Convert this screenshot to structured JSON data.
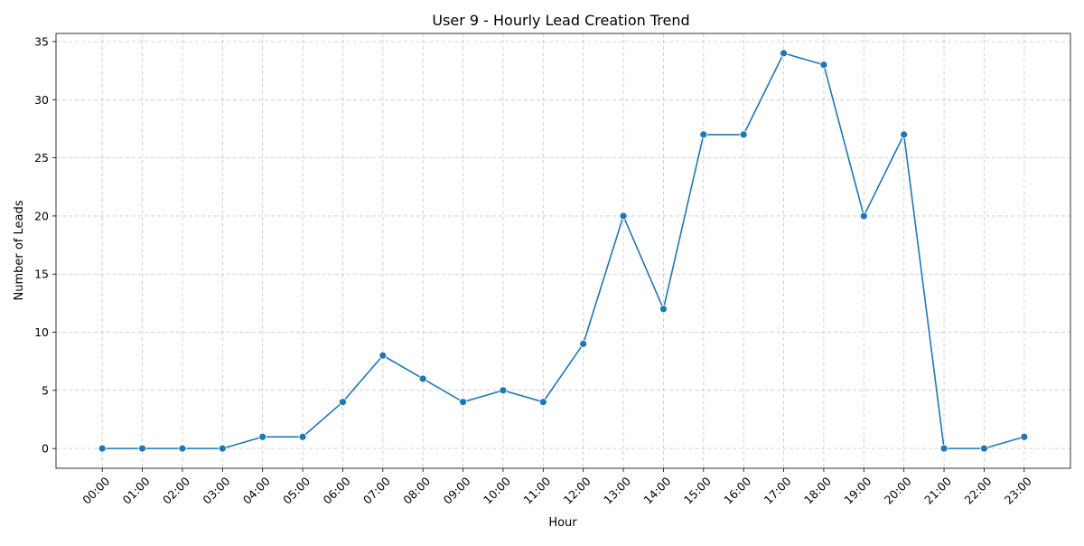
{
  "chart_data": {
    "type": "line",
    "title": "User 9 - Hourly Lead Creation Trend",
    "xlabel": "Hour",
    "ylabel": "Number of Leads",
    "categories": [
      "00:00",
      "01:00",
      "02:00",
      "03:00",
      "04:00",
      "05:00",
      "06:00",
      "07:00",
      "08:00",
      "09:00",
      "10:00",
      "11:00",
      "12:00",
      "13:00",
      "14:00",
      "15:00",
      "16:00",
      "17:00",
      "18:00",
      "19:00",
      "20:00",
      "21:00",
      "22:00",
      "23:00"
    ],
    "series": [
      {
        "name": "Leads",
        "color": "#1f77b4",
        "values": [
          0,
          0,
          0,
          0,
          1,
          1,
          4,
          8,
          6,
          4,
          5,
          4,
          9,
          20,
          12,
          27,
          27,
          34,
          33,
          20,
          27,
          0,
          0,
          1
        ]
      }
    ],
    "ylim": [
      -1.7,
      35.7
    ],
    "yticks": [
      0,
      5,
      10,
      15,
      20,
      25,
      30,
      35
    ],
    "grid": true,
    "marker": "circle",
    "xtick_rotation": 45
  }
}
